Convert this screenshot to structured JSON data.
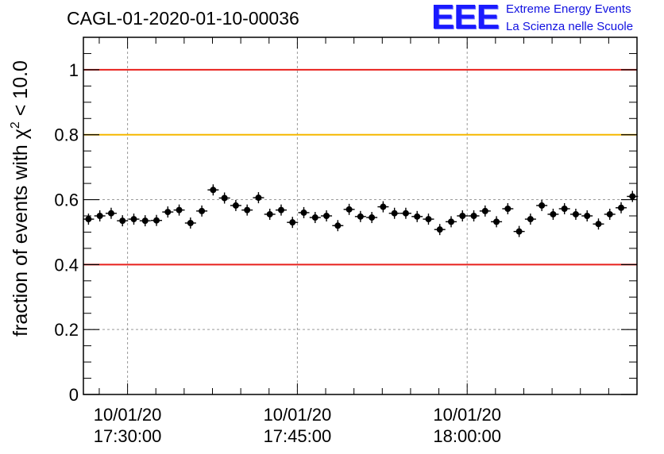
{
  "title": "CAGL-01-2020-01-10-00036",
  "logo": {
    "mark": "EEE",
    "line1": "Extreme Energy Events",
    "line2": "La Scienza nelle Scuole",
    "color": "#1a1aff"
  },
  "chart_data": {
    "type": "scatter",
    "ylabel": "fraction of events with χ² < 10.0",
    "ylabel_main": "fraction of events with χ",
    "ylabel_sup": "2",
    "ylabel_tail": " < 10.0",
    "ylim": [
      0,
      1.1
    ],
    "yticks": [
      0,
      0.2,
      0.4,
      0.6,
      0.8,
      1
    ],
    "ytick_labels": [
      "0",
      "0.2",
      "0.4",
      "0.6",
      "0.8",
      "1"
    ],
    "xlim_minutes": [
      -3.9,
      45.0
    ],
    "xticks": [
      {
        "minutes": 0,
        "date": "10/01/20",
        "time": "17:30:00"
      },
      {
        "minutes": 15,
        "date": "10/01/20",
        "time": "17:45:00"
      },
      {
        "minutes": 30,
        "date": "10/01/20",
        "time": "18:00:00"
      }
    ],
    "grid": true,
    "reference_lines": [
      {
        "y": 1.0,
        "color": "#e8201c"
      },
      {
        "y": 0.8,
        "color": "#f5b800"
      },
      {
        "y": 0.4,
        "color": "#e8201c"
      }
    ],
    "marker_color": "#000000",
    "y": [
      0.54,
      0.55,
      0.558,
      0.535,
      0.54,
      0.535,
      0.536,
      0.562,
      0.568,
      0.528,
      0.565,
      0.63,
      0.605,
      0.582,
      0.568,
      0.606,
      0.555,
      0.568,
      0.53,
      0.56,
      0.545,
      0.55,
      0.52,
      0.57,
      0.548,
      0.545,
      0.578,
      0.558,
      0.558,
      0.548,
      0.54,
      0.508,
      0.532,
      0.55,
      0.55,
      0.565,
      0.532,
      0.572,
      0.502,
      0.54,
      0.582,
      0.555,
      0.572,
      0.555,
      0.55,
      0.525,
      0.555,
      0.575,
      0.61
    ]
  }
}
